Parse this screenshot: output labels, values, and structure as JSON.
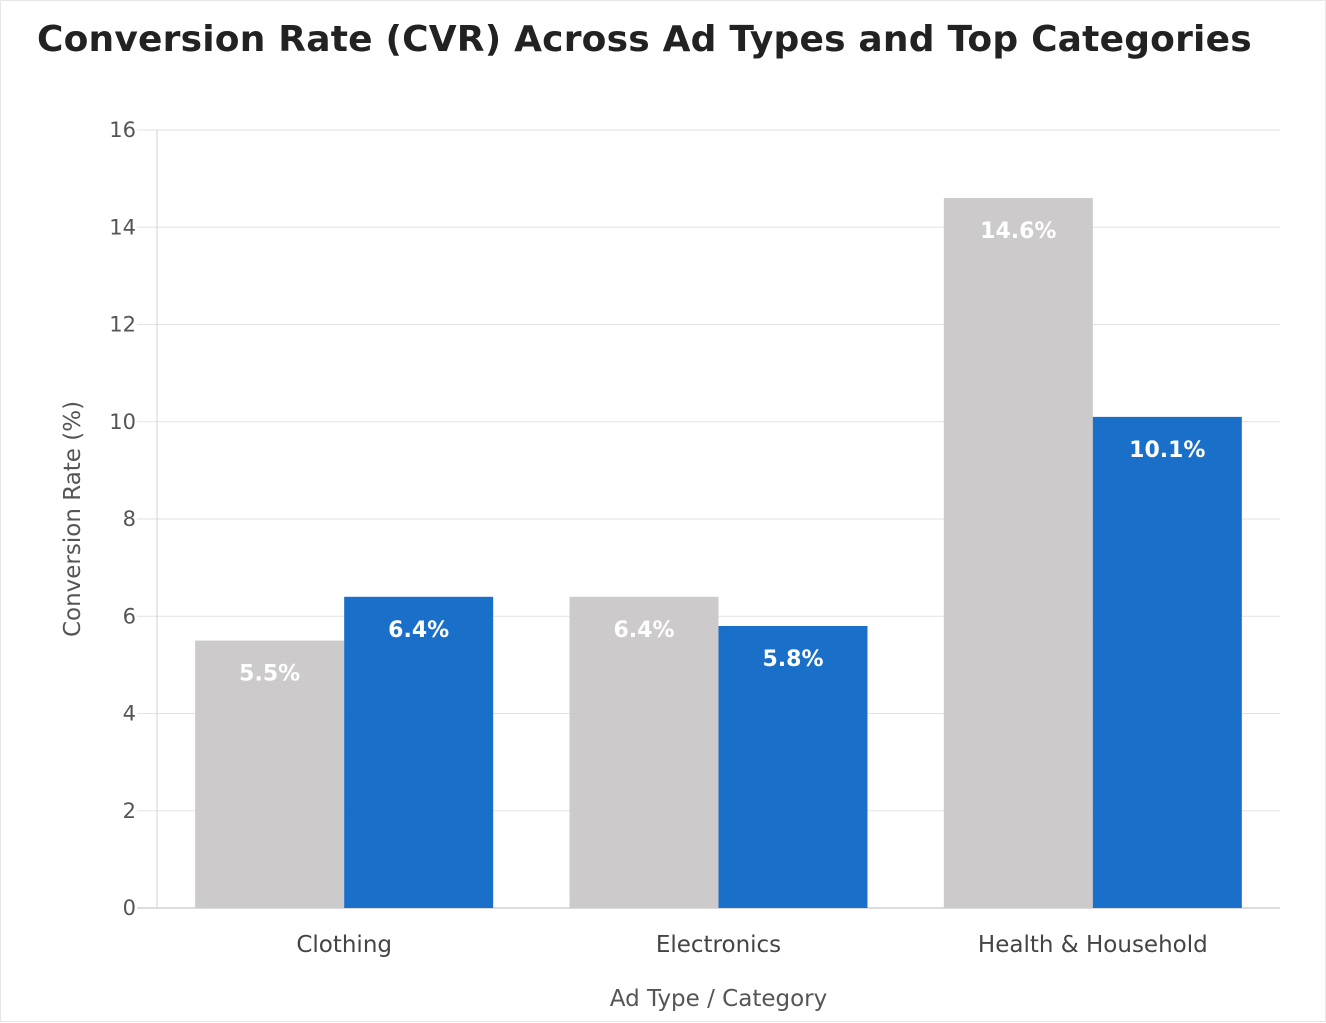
{
  "chart_data": {
    "type": "bar",
    "title": "Conversion Rate (CVR) Across Ad Types and Top Categories",
    "xlabel": "Ad Type / Category",
    "ylabel": "Conversion Rate (%)",
    "categories": [
      "Clothing",
      "Electronics",
      "Health & Household"
    ],
    "series": [
      {
        "values": [
          5.5,
          6.4,
          14.6
        ],
        "labels": [
          "5.5%",
          "6.4%",
          "14.6%"
        ],
        "color": "#cccacb"
      },
      {
        "values": [
          6.4,
          5.8,
          10.1
        ],
        "labels": [
          "6.4%",
          "5.8%",
          "10.1%"
        ],
        "color": "#1a70c9"
      }
    ],
    "ylim": [
      0,
      16
    ],
    "yticks": [
      "0",
      "2",
      "4",
      "6",
      "8",
      "10",
      "12",
      "14",
      "16"
    ],
    "grid": true,
    "legend": "none"
  }
}
